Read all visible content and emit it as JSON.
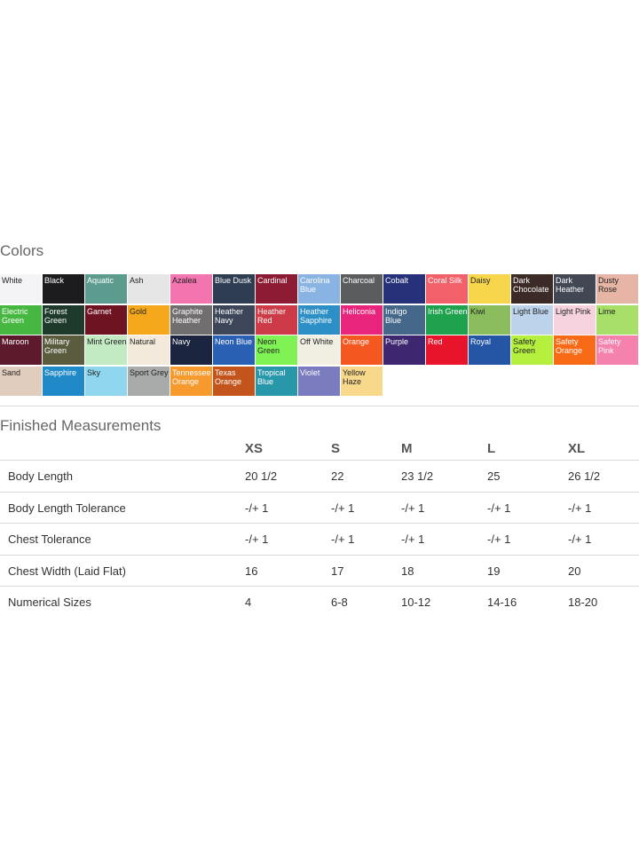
{
  "colors_section": {
    "title": "Colors",
    "swatches": [
      {
        "label": "White",
        "bg": "#f4f4f6",
        "fg": "#222222"
      },
      {
        "label": "Black",
        "bg": "#1c1c1f",
        "fg": "#ffffff"
      },
      {
        "label": "Aquatic",
        "bg": "#5c9c8e",
        "fg": "#ffffff"
      },
      {
        "label": "Ash",
        "bg": "#e6e6e6",
        "fg": "#222222"
      },
      {
        "label": "Azalea",
        "bg": "#f275b0",
        "fg": "#222222"
      },
      {
        "label": "Blue Dusk",
        "bg": "#2f3d52",
        "fg": "#ffffff"
      },
      {
        "label": "Cardinal",
        "bg": "#8d1b33",
        "fg": "#ffffff"
      },
      {
        "label": "Carolina Blue",
        "bg": "#88b3e2",
        "fg": "#ffffff"
      },
      {
        "label": "Charcoal",
        "bg": "#5b5c5e",
        "fg": "#ffffff"
      },
      {
        "label": "Cobalt",
        "bg": "#26317a",
        "fg": "#ffffff"
      },
      {
        "label": "Coral Silk",
        "bg": "#f2606a",
        "fg": "#ffffff"
      },
      {
        "label": "Daisy",
        "bg": "#f7d64b",
        "fg": "#222222"
      },
      {
        "label": "Dark Chocolate",
        "bg": "#3b2a25",
        "fg": "#ffffff"
      },
      {
        "label": "Dark Heather",
        "bg": "#424853",
        "fg": "#ffffff"
      },
      {
        "label": "Dusty Rose",
        "bg": "#e7b5a6",
        "fg": "#222222"
      },
      {
        "label": "Electric Green",
        "bg": "#46b842",
        "fg": "#ffffff"
      },
      {
        "label": "Forest Green",
        "bg": "#1e3a2b",
        "fg": "#ffffff"
      },
      {
        "label": "Garnet",
        "bg": "#6e1322",
        "fg": "#ffffff"
      },
      {
        "label": "Gold",
        "bg": "#f6a81c",
        "fg": "#222222"
      },
      {
        "label": "Graphite Heather",
        "bg": "#706e6e",
        "fg": "#ffffff"
      },
      {
        "label": "Heather Navy",
        "bg": "#3c4658",
        "fg": "#ffffff"
      },
      {
        "label": "Heather Red",
        "bg": "#cc3b47",
        "fg": "#ffffff"
      },
      {
        "label": "Heather Sapphire",
        "bg": "#2c8fc6",
        "fg": "#ffffff"
      },
      {
        "label": "Heliconia",
        "bg": "#e9247c",
        "fg": "#ffffff"
      },
      {
        "label": "Indigo Blue",
        "bg": "#45678a",
        "fg": "#ffffff"
      },
      {
        "label": "Irish Green",
        "bg": "#1fa24d",
        "fg": "#ffffff"
      },
      {
        "label": "Kiwi",
        "bg": "#8bbc5d",
        "fg": "#222222"
      },
      {
        "label": "Light Blue",
        "bg": "#bdd3ec",
        "fg": "#222222"
      },
      {
        "label": "Light Pink",
        "bg": "#f6d1de",
        "fg": "#222222"
      },
      {
        "label": "Lime",
        "bg": "#a7df69",
        "fg": "#222222"
      },
      {
        "label": "Maroon",
        "bg": "#5e1a2d",
        "fg": "#ffffff"
      },
      {
        "label": "Military Green",
        "bg": "#5a5c3d",
        "fg": "#ffffff"
      },
      {
        "label": "Mint Green",
        "bg": "#c3ebc3",
        "fg": "#222222"
      },
      {
        "label": "Natural",
        "bg": "#f3eadb",
        "fg": "#222222"
      },
      {
        "label": "Navy",
        "bg": "#1c2540",
        "fg": "#ffffff"
      },
      {
        "label": "Neon Blue",
        "bg": "#2960b4",
        "fg": "#ffffff"
      },
      {
        "label": "Neon Green",
        "bg": "#7ff254",
        "fg": "#222222"
      },
      {
        "label": "Off White",
        "bg": "#f1efe2",
        "fg": "#222222"
      },
      {
        "label": "Orange",
        "bg": "#f4571f",
        "fg": "#ffffff"
      },
      {
        "label": "Purple",
        "bg": "#3e2670",
        "fg": "#ffffff"
      },
      {
        "label": "Red",
        "bg": "#e8142c",
        "fg": "#ffffff"
      },
      {
        "label": "Royal",
        "bg": "#2456a5",
        "fg": "#ffffff"
      },
      {
        "label": "Safety Green",
        "bg": "#b6f03f",
        "fg": "#222222"
      },
      {
        "label": "Safety Orange",
        "bg": "#f96a17",
        "fg": "#ffffff"
      },
      {
        "label": "Safety Pink",
        "bg": "#f581ad",
        "fg": "#ffffff"
      },
      {
        "label": "Sand",
        "bg": "#e0cdbd",
        "fg": "#222222"
      },
      {
        "label": "Sapphire",
        "bg": "#1f8ac7",
        "fg": "#ffffff"
      },
      {
        "label": "Sky",
        "bg": "#8fd6ee",
        "fg": "#222222"
      },
      {
        "label": "Sport Grey",
        "bg": "#a9aaaa",
        "fg": "#222222"
      },
      {
        "label": "Tennessee Orange",
        "bg": "#f69a2e",
        "fg": "#ffffff"
      },
      {
        "label": "Texas Orange",
        "bg": "#c3551c",
        "fg": "#ffffff"
      },
      {
        "label": "Tropical Blue",
        "bg": "#2997aa",
        "fg": "#ffffff"
      },
      {
        "label": "Violet",
        "bg": "#7b7bbf",
        "fg": "#ffffff"
      },
      {
        "label": "Yellow Haze",
        "bg": "#f8d98c",
        "fg": "#222222"
      }
    ]
  },
  "measurements_section": {
    "title": "Finished Measurements",
    "sizes": [
      "XS",
      "S",
      "M",
      "L",
      "XL"
    ],
    "rows": [
      {
        "label": "Body Length",
        "values": [
          "20 1/2",
          "22",
          "23 1/2",
          "25",
          "26 1/2"
        ]
      },
      {
        "label": "Body Length Tolerance",
        "values": [
          "-/+ 1",
          "-/+ 1",
          "-/+ 1",
          "-/+ 1",
          "-/+ 1"
        ]
      },
      {
        "label": "Chest Tolerance",
        "values": [
          "-/+ 1",
          "-/+ 1",
          "-/+ 1",
          "-/+ 1",
          "-/+ 1"
        ]
      },
      {
        "label": "Chest Width (Laid Flat)",
        "values": [
          "16",
          "17",
          "18",
          "19",
          "20"
        ]
      },
      {
        "label": "Numerical Sizes",
        "values": [
          "4",
          "6-8",
          "10-12",
          "14-16",
          "18-20"
        ]
      }
    ]
  }
}
